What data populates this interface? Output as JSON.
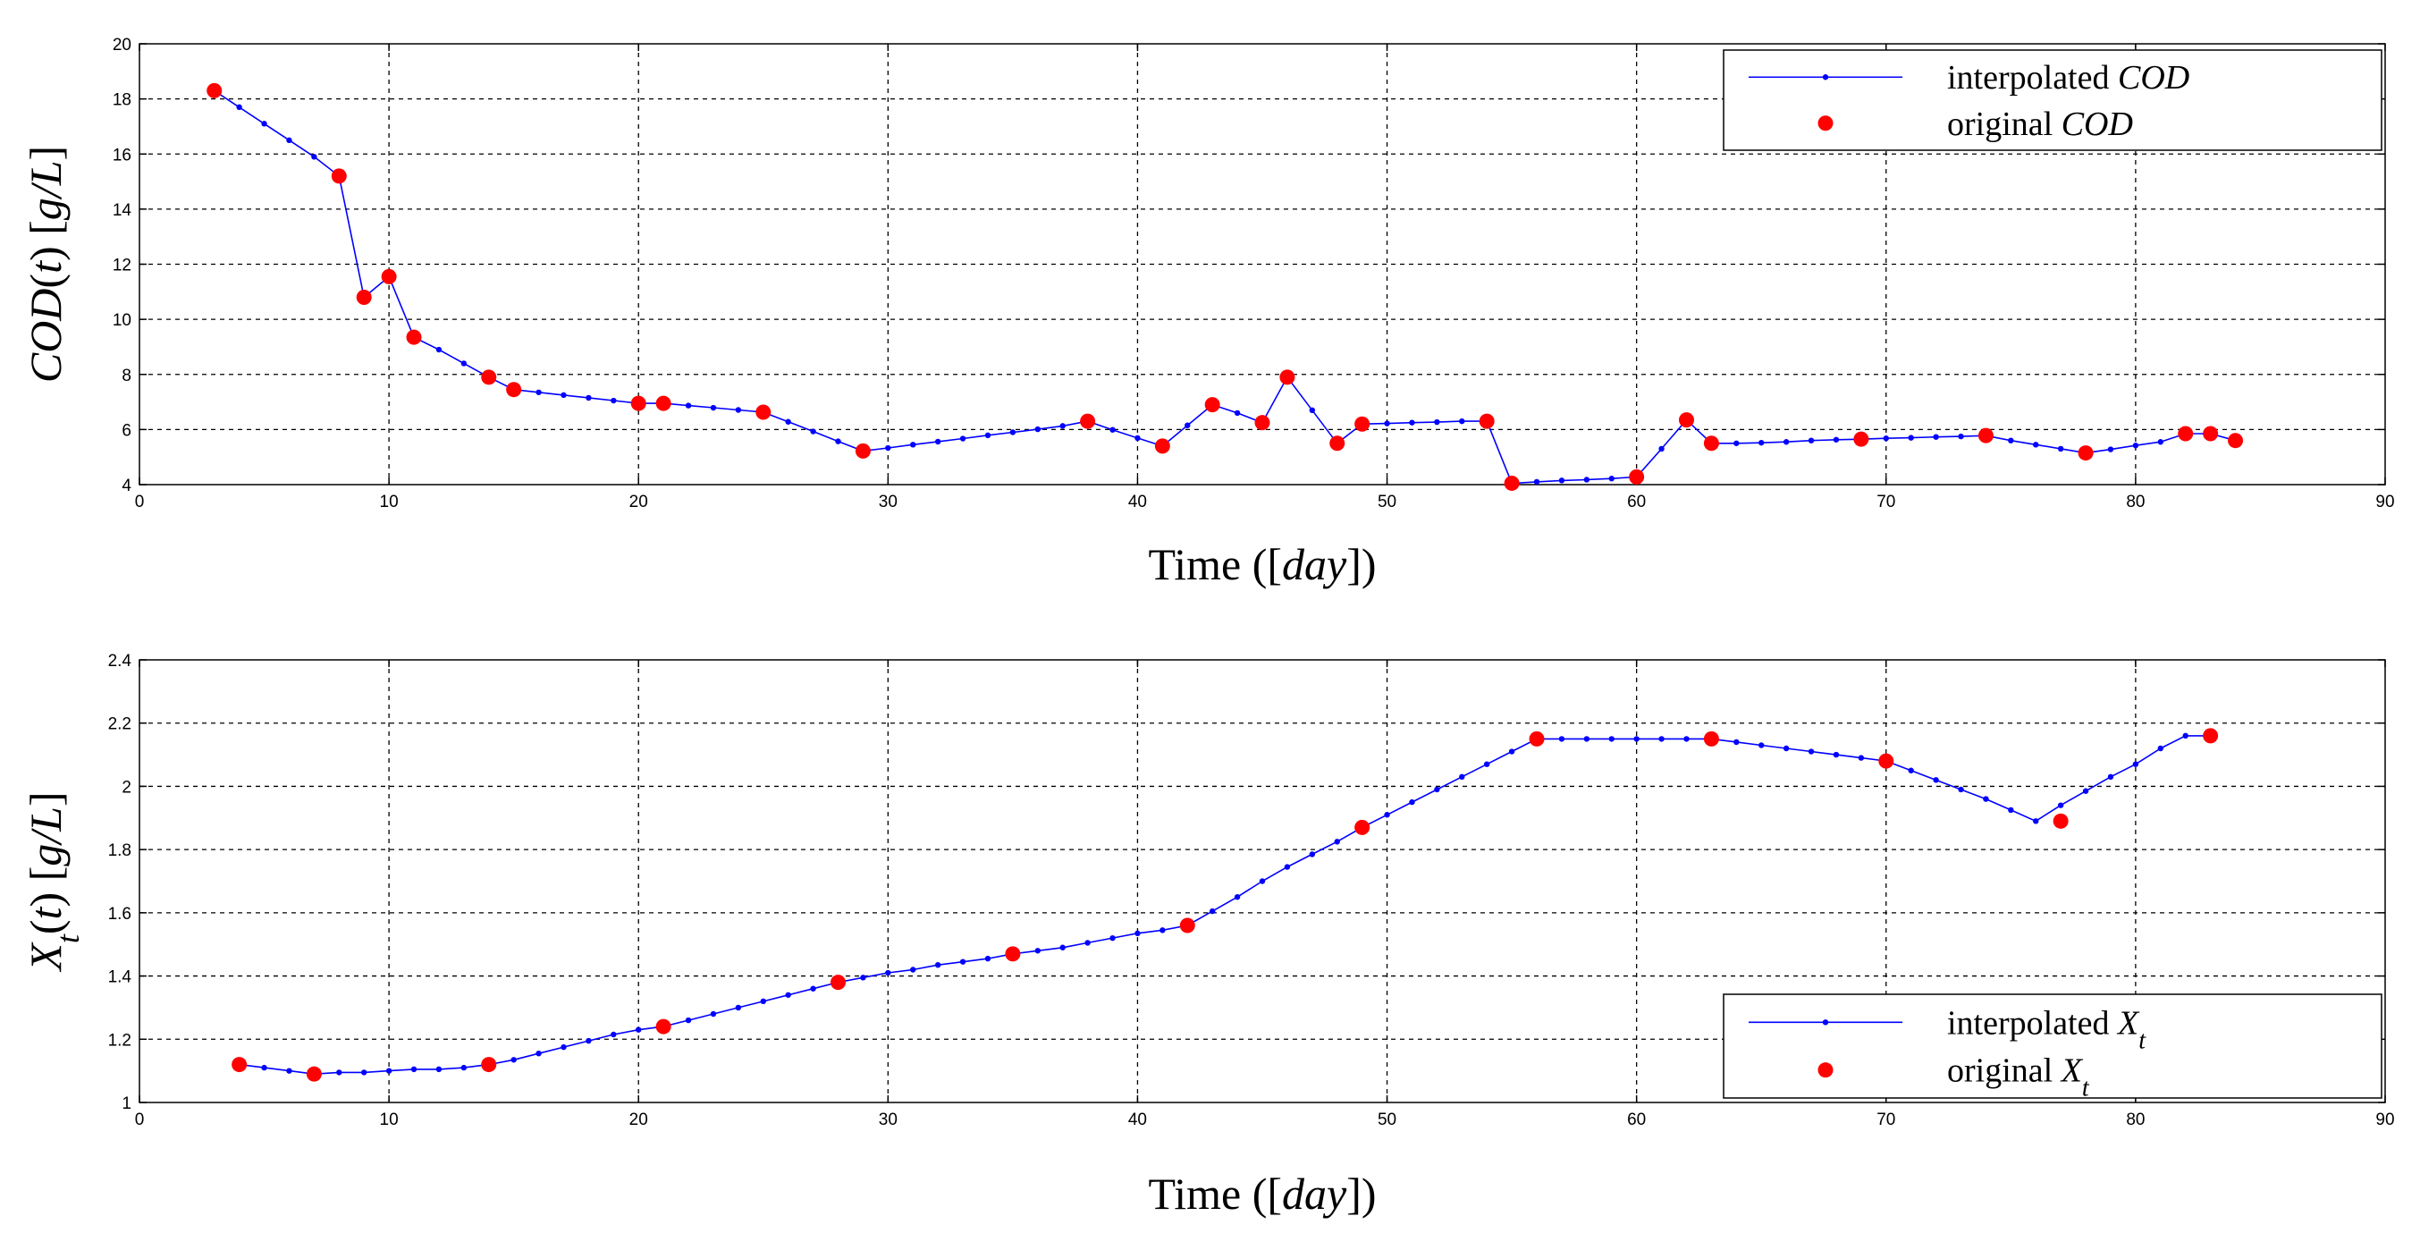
{
  "chart_data": [
    {
      "type": "line",
      "ylabel": "COD(t) [g/L]",
      "xlabel": "Time ([day])",
      "xlim": [
        0,
        90
      ],
      "ylim": [
        4,
        20
      ],
      "xticks": [
        0,
        10,
        20,
        30,
        40,
        50,
        60,
        70,
        80,
        90
      ],
      "yticks": [
        4,
        6,
        8,
        10,
        12,
        14,
        16,
        18,
        20
      ],
      "grid": true,
      "legend_position": "top-right",
      "series": [
        {
          "name": "interpolated COD",
          "color": "#0000ff",
          "x": [
            3,
            4,
            5,
            6,
            7,
            8,
            9,
            10,
            11,
            12,
            13,
            14,
            15,
            16,
            17,
            18,
            19,
            20,
            21,
            22,
            23,
            24,
            25,
            26,
            27,
            28,
            29,
            30,
            31,
            32,
            33,
            34,
            35,
            36,
            37,
            38,
            39,
            40,
            41,
            42,
            43,
            44,
            45,
            46,
            47,
            48,
            49,
            50,
            51,
            52,
            53,
            54,
            55,
            56,
            57,
            58,
            59,
            60,
            61,
            62,
            63,
            64,
            65,
            66,
            67,
            68,
            69,
            70,
            71,
            72,
            73,
            74,
            75,
            76,
            77,
            78,
            79,
            80,
            81,
            82,
            83,
            84
          ],
          "y": [
            18.3,
            17.7,
            17.1,
            16.5,
            15.9,
            15.2,
            10.8,
            11.55,
            9.35,
            8.9,
            8.4,
            7.9,
            7.45,
            7.35,
            7.25,
            7.15,
            7.05,
            6.95,
            6.95,
            6.87,
            6.79,
            6.71,
            6.63,
            6.28,
            5.93,
            5.57,
            5.22,
            5.33,
            5.45,
            5.56,
            5.67,
            5.79,
            5.9,
            6.01,
            6.13,
            6.3,
            5.99,
            5.69,
            5.4,
            6.15,
            6.9,
            6.6,
            6.25,
            7.9,
            6.7,
            5.5,
            6.2,
            6.22,
            6.25,
            6.27,
            6.3,
            6.3,
            4.05,
            4.1,
            4.15,
            4.18,
            4.22,
            4.28,
            5.3,
            6.35,
            5.5,
            5.5,
            5.52,
            5.55,
            5.6,
            5.63,
            5.65,
            5.68,
            5.7,
            5.73,
            5.75,
            5.78,
            5.6,
            5.45,
            5.3,
            5.15,
            5.28,
            5.42,
            5.55,
            5.85,
            5.85,
            5.6
          ]
        },
        {
          "name": "original COD",
          "color": "#ff0000",
          "x": [
            3,
            8,
            9,
            10,
            11,
            14,
            15,
            20,
            21,
            25,
            29,
            38,
            41,
            43,
            45,
            46,
            48,
            49,
            54,
            55,
            60,
            62,
            63,
            69,
            74,
            78,
            82,
            83,
            84
          ],
          "y": [
            18.3,
            15.2,
            10.8,
            11.55,
            9.35,
            7.9,
            7.45,
            6.95,
            6.95,
            6.63,
            5.22,
            6.3,
            5.4,
            6.9,
            6.25,
            7.9,
            5.5,
            6.2,
            6.3,
            4.05,
            4.28,
            6.35,
            5.5,
            5.65,
            5.78,
            5.15,
            5.85,
            5.85,
            5.6
          ]
        }
      ]
    },
    {
      "type": "line",
      "ylabel": "Xt(t) [g/L]",
      "xlabel": "Time ([day])",
      "xlim": [
        0,
        90
      ],
      "ylim": [
        1,
        2.4
      ],
      "xticks": [
        0,
        10,
        20,
        30,
        40,
        50,
        60,
        70,
        80,
        90
      ],
      "yticks": [
        1,
        1.2,
        1.4,
        1.6,
        1.8,
        2,
        2.2,
        2.4
      ],
      "grid": true,
      "legend_position": "bottom-right",
      "series": [
        {
          "name": "interpolated Xt",
          "color": "#0000ff",
          "x": [
            4,
            5,
            6,
            7,
            8,
            9,
            10,
            11,
            12,
            13,
            14,
            15,
            16,
            17,
            18,
            19,
            20,
            21,
            22,
            23,
            24,
            25,
            26,
            27,
            28,
            29,
            30,
            31,
            32,
            33,
            34,
            35,
            36,
            37,
            38,
            39,
            40,
            41,
            42,
            43,
            44,
            45,
            46,
            47,
            48,
            49,
            50,
            51,
            52,
            53,
            54,
            55,
            56,
            57,
            58,
            59,
            60,
            61,
            62,
            63,
            64,
            65,
            66,
            67,
            68,
            69,
            70,
            71,
            72,
            73,
            74,
            75,
            76,
            77,
            78,
            79,
            80,
            81,
            82,
            83
          ],
          "y": [
            1.12,
            1.11,
            1.1,
            1.09,
            1.095,
            1.095,
            1.1,
            1.105,
            1.105,
            1.11,
            1.12,
            1.135,
            1.155,
            1.175,
            1.195,
            1.215,
            1.23,
            1.24,
            1.26,
            1.28,
            1.3,
            1.32,
            1.34,
            1.36,
            1.38,
            1.395,
            1.41,
            1.42,
            1.435,
            1.445,
            1.455,
            1.47,
            1.48,
            1.49,
            1.505,
            1.52,
            1.535,
            1.545,
            1.56,
            1.605,
            1.65,
            1.7,
            1.745,
            1.785,
            1.825,
            1.87,
            1.91,
            1.95,
            1.99,
            2.03,
            2.07,
            2.11,
            2.15,
            2.15,
            2.15,
            2.15,
            2.15,
            2.15,
            2.15,
            2.15,
            2.14,
            2.13,
            2.12,
            2.11,
            2.1,
            2.09,
            2.08,
            2.05,
            2.02,
            1.99,
            1.96,
            1.925,
            1.89,
            1.94,
            1.985,
            2.03,
            2.07,
            2.12,
            2.16,
            2.16
          ]
        },
        {
          "name": "original Xt",
          "color": "#ff0000",
          "x": [
            4,
            7,
            14,
            21,
            28,
            35,
            42,
            49,
            56,
            63,
            70,
            77,
            83
          ],
          "y": [
            1.12,
            1.09,
            1.12,
            1.24,
            1.38,
            1.47,
            1.56,
            1.87,
            2.15,
            2.15,
            2.08,
            1.89,
            2.16
          ]
        }
      ]
    }
  ],
  "legend": [
    [
      {
        "prefix": "interpolated ",
        "var": "COD",
        "sub": ""
      },
      {
        "prefix": "original ",
        "var": "COD",
        "sub": ""
      }
    ],
    [
      {
        "prefix": "interpolated ",
        "var": "X",
        "sub": "t"
      },
      {
        "prefix": "original ",
        "var": "X",
        "sub": "t"
      }
    ]
  ],
  "ylabels": [
    {
      "var": "COD",
      "sub": "",
      "rest": "(t) [g/L]"
    },
    {
      "var": "X",
      "sub": "t",
      "rest": "(t) [g/L]"
    }
  ],
  "xlabel_text": {
    "pre": "Time ([",
    "var": "day",
    "post": "])"
  }
}
